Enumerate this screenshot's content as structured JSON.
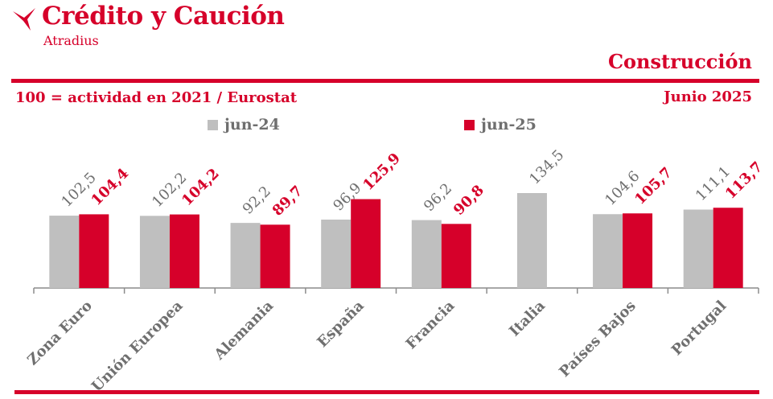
{
  "brand": {
    "name": "Crédito y Caución",
    "sub": "Atradius",
    "logo_icon": "atradius-bird-icon"
  },
  "sector": "Construcción",
  "subtitle": "100 = actividad en 2021 / Eurostat",
  "date": "Junio 2025",
  "colors": {
    "accent": "#d6002a",
    "series_2024": "#bfbfbf",
    "series_2025": "#d6002a",
    "label_gray": "#6f6f6f"
  },
  "chart_data": {
    "type": "bar",
    "title": "Construcción",
    "subtitle": "100 = actividad en 2021 / Eurostat",
    "categories": [
      "Zona Euro",
      "Unión Europea",
      "Alemania",
      "España",
      "Francia",
      "Italia",
      "Países Bajos",
      "Portugal"
    ],
    "series": [
      {
        "name": "jun-24",
        "values": [
          102.5,
          102.2,
          92.2,
          96.9,
          96.2,
          134.5,
          104.6,
          111.1
        ],
        "labels": [
          "102,5",
          "102,2",
          "92,2",
          "96,9",
          "96,2",
          "134,5",
          "104,6",
          "111,1"
        ],
        "color": "#bfbfbf"
      },
      {
        "name": "jun-25",
        "values": [
          104.4,
          104.2,
          89.7,
          125.9,
          90.8,
          null,
          105.7,
          113.7
        ],
        "labels": [
          "104,4",
          "104,2",
          "89,7",
          "125,9",
          "90,8",
          "",
          "105,7",
          "113,7"
        ],
        "color": "#d6002a"
      }
    ],
    "legend": "top",
    "grid": false,
    "ylim": [
      0,
      134.5
    ]
  }
}
